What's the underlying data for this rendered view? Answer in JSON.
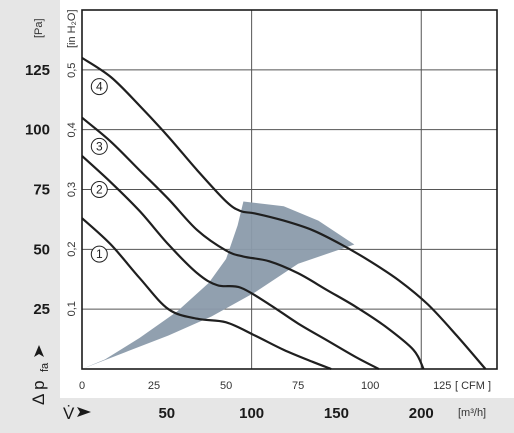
{
  "chart_data": {
    "type": "line",
    "title": "",
    "y_unit_left": "[Pa]",
    "y_unit_inner": "[in H₂O]",
    "x_unit_cfm": "[ CFM ]",
    "x_unit_m3h": "[m³/h]",
    "ylabel": "Δ p",
    "ylabel_sub": "fa",
    "xlabel": "V̇",
    "y_ticks_pa": [
      "25",
      "50",
      "75",
      "100",
      "125"
    ],
    "y_ticks_inh2o": [
      "0,1",
      "0,2",
      "0,3",
      "0,4",
      "0,5"
    ],
    "x_ticks_cfm": [
      "0",
      "25",
      "50",
      "75",
      "100",
      "125"
    ],
    "x_ticks_m3h": [
      "50",
      "100",
      "150",
      "200"
    ],
    "xlim_cfm": [
      0,
      144
    ],
    "ylim_pa": [
      0,
      150
    ],
    "grid": true,
    "series": [
      {
        "name": "1",
        "x": [
          0,
          10,
          20,
          30,
          40,
          50,
          60,
          70,
          80,
          86.5
        ],
        "y": [
          63,
          52,
          38,
          25,
          21,
          19.5,
          14,
          8,
          3,
          0
        ]
      },
      {
        "name": "2",
        "x": [
          0,
          10,
          20,
          30,
          40,
          47,
          55,
          65,
          75,
          85,
          95,
          103
        ],
        "y": [
          89,
          78,
          66,
          52,
          40,
          35,
          34,
          27,
          19,
          12,
          5,
          0
        ]
      },
      {
        "name": "3",
        "x": [
          0,
          10,
          20,
          30,
          40,
          50,
          56,
          65,
          75,
          85,
          95,
          105,
          115,
          118.5
        ],
        "y": [
          105,
          95,
          83,
          71,
          58,
          49.5,
          47,
          45,
          40,
          33,
          26,
          18,
          8,
          0
        ]
      },
      {
        "name": "4",
        "x": [
          0,
          10,
          20,
          30,
          40,
          50,
          55,
          60,
          70,
          80,
          90,
          100,
          110,
          120,
          130,
          140
        ],
        "y": [
          130,
          122,
          110,
          97,
          83,
          70,
          66,
          65,
          62,
          58,
          52,
          45,
          37,
          27,
          14,
          0
        ]
      }
    ],
    "operating_area": [
      [
        0,
        0
      ],
      [
        15,
        7
      ],
      [
        30,
        14
      ],
      [
        45,
        22
      ],
      [
        60,
        32
      ],
      [
        75,
        44
      ],
      [
        94.5,
        52
      ],
      [
        82,
        62
      ],
      [
        70,
        68
      ],
      [
        56,
        70
      ],
      [
        54,
        60
      ],
      [
        50,
        46
      ],
      [
        44,
        36
      ],
      [
        33,
        24
      ],
      [
        20,
        13
      ],
      [
        8,
        4
      ]
    ]
  }
}
